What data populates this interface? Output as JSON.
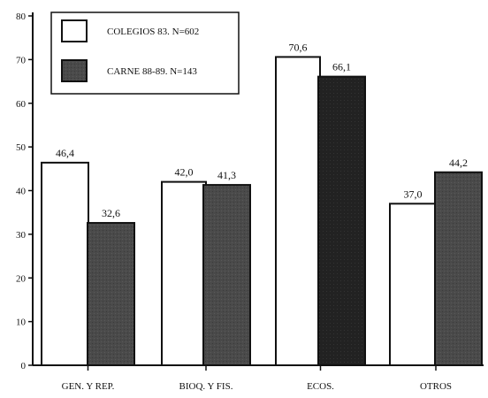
{
  "chart_data": {
    "type": "bar",
    "title": "",
    "xlabel": "",
    "ylabel": "",
    "ylim": [
      0,
      80
    ],
    "yticks": [
      0,
      10,
      20,
      30,
      40,
      50,
      60,
      70,
      80
    ],
    "categories": [
      "GEN. Y REP.",
      "BIOQ. Y FIS.",
      "ECOS.",
      "OTROS"
    ],
    "series": [
      {
        "name": "COLEGIOS 83. N=602",
        "values": [
          46.4,
          42.0,
          70.6,
          37.0
        ],
        "labels": [
          "46,4",
          "42,0",
          "70,6",
          "37,0"
        ],
        "color": "#ffffff"
      },
      {
        "name": "CARNE 88-89. N=143",
        "values": [
          32.6,
          41.3,
          66.1,
          44.2
        ],
        "labels": [
          "32,6",
          "41,3",
          "66,1",
          "44,2"
        ],
        "color": "#4a4a4a"
      }
    ],
    "legend_position": "top-left",
    "grid": false
  }
}
